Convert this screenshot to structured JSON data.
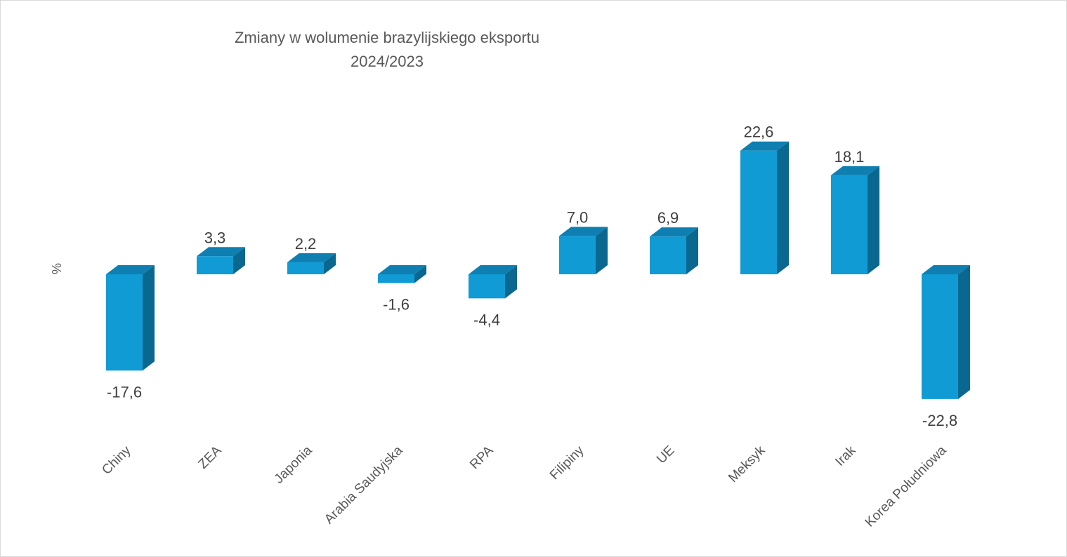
{
  "chart_data": {
    "type": "bar",
    "title_lines": [
      "Zmiany w wolumenie brazylijskiego eksportu",
      "2024/2023"
    ],
    "xlabel": "",
    "ylabel": "%",
    "categories": [
      "Chiny",
      "ZEA",
      "Japonia",
      "Arabia Saudyjska",
      "RPA",
      "Filipiny",
      "UE",
      "Meksyk",
      "Irak",
      "Korea Południowa"
    ],
    "values": [
      -17.6,
      3.3,
      2.2,
      -1.6,
      -4.4,
      7.0,
      6.9,
      22.6,
      18.1,
      -22.8
    ],
    "value_labels": [
      "-17,6",
      "3,3",
      "2,2",
      "-1,6",
      "-4,4",
      "7,0",
      "6,9",
      "22,6",
      "18,1",
      "-22,8"
    ],
    "grid": false,
    "legend": "none",
    "style": "3d-column",
    "colors": {
      "front": "#119bd5",
      "side": "#0a6890",
      "top": "#0e7fb0",
      "text": "#404040",
      "axis_text": "#595959"
    }
  }
}
